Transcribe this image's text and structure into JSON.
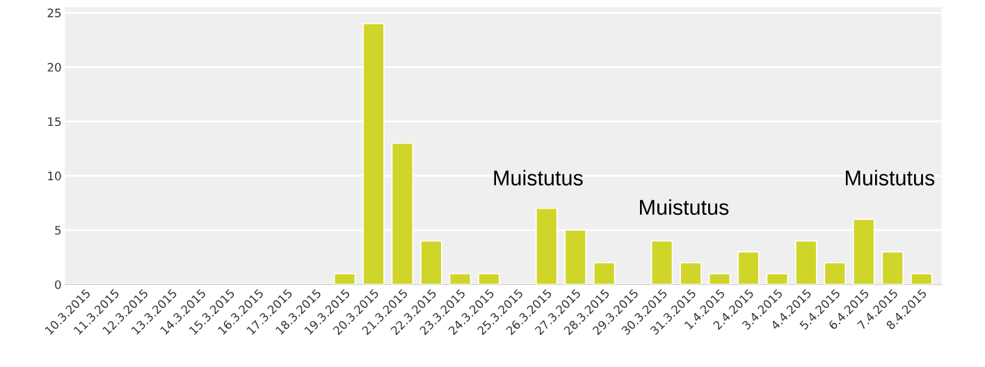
{
  "chart_data": {
    "type": "bar",
    "categories": [
      "10.3.2015",
      "11.3.2015",
      "12.3.2015",
      "13.3.2015",
      "14.3.2015",
      "15.3.2015",
      "16.3.2015",
      "17.3.2015",
      "18.3.2015",
      "19.3.2015",
      "20.3.2015",
      "21.3.2015",
      "22.3.2015",
      "23.3.2015",
      "24.3.2015",
      "25.3.2015",
      "26.3.2015",
      "27.3.2015",
      "28.3.2015",
      "29.3.2015",
      "30.3.2015",
      "31.3.2015",
      "1.4.2015",
      "2.4.2015",
      "3.4.2015",
      "4.4.2015",
      "5.4.2015",
      "6.4.2015",
      "7.4.2015",
      "8.4.2015"
    ],
    "values": [
      0,
      0,
      0,
      0,
      0,
      0,
      0,
      0,
      0,
      1,
      24,
      13,
      4,
      1,
      1,
      0,
      7,
      5,
      2,
      0,
      4,
      2,
      1,
      3,
      1,
      4,
      2,
      6,
      3,
      1
    ],
    "color": "#d0d52a",
    "ylim": [
      0,
      25.5
    ],
    "yticks": [
      0,
      5,
      10,
      15,
      20,
      25
    ],
    "grid": "y",
    "legend": false,
    "annotations": [
      "Muistutus",
      "Muistutus",
      "Muistutus"
    ]
  }
}
